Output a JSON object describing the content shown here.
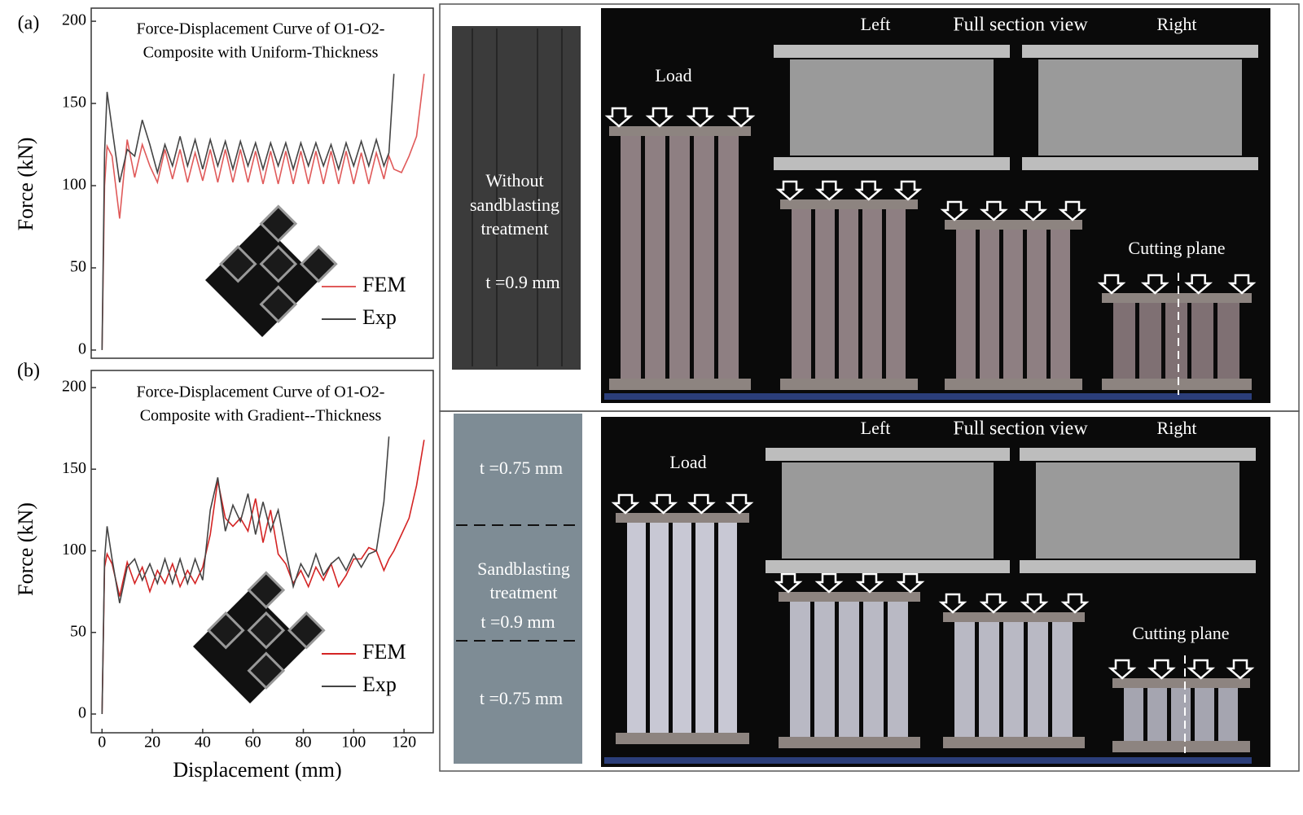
{
  "chart_data": [
    {
      "type": "line",
      "panel_label": "(a)",
      "title": "Force-Displacement Curve of O1-O2-",
      "subtitle": "Composite with Uniform-Thickness",
      "y_label": "Force (kN)",
      "x": [
        0,
        1,
        2,
        4,
        7,
        10,
        13,
        16,
        19,
        22,
        25,
        28,
        31,
        34,
        37,
        40,
        43,
        46,
        49,
        52,
        55,
        58,
        61,
        64,
        67,
        70,
        73,
        76,
        79,
        82,
        85,
        88,
        91,
        94,
        97,
        100,
        103,
        106,
        109,
        112,
        114,
        116,
        119,
        122,
        125,
        128
      ],
      "series": [
        {
          "name": "FEM",
          "color": "#e05a5a",
          "values": [
            0,
            100,
            124,
            118,
            80,
            128,
            105,
            125,
            112,
            102,
            122,
            104,
            122,
            102,
            120,
            103,
            122,
            102,
            122,
            102,
            122,
            102,
            121,
            101,
            121,
            101,
            121,
            101,
            121,
            101,
            121,
            101,
            121,
            101,
            121,
            101,
            120,
            101,
            120,
            104,
            118,
            110,
            108,
            118,
            130,
            168
          ]
        },
        {
          "name": "Exp",
          "color": "#444444",
          "values": [
            0,
            120,
            157,
            135,
            102,
            122,
            118,
            140,
            125,
            108,
            125,
            112,
            130,
            112,
            128,
            110,
            128,
            112,
            127,
            110,
            127,
            112,
            126,
            110,
            126,
            112,
            126,
            110,
            126,
            112,
            126,
            112,
            125,
            110,
            126,
            112,
            127,
            112,
            128,
            112,
            120,
            168,
            null,
            null,
            null,
            null
          ]
        }
      ],
      "xlim": [
        -3,
        130
      ],
      "ylim": [
        -3,
        205
      ],
      "yticks": [
        0,
        50,
        100,
        150,
        200
      ]
    },
    {
      "type": "line",
      "panel_label": "(b)",
      "title": "Force-Displacement Curve of O1-O2-",
      "subtitle": "Composite with Gradient--Thickness",
      "y_label": "Force (kN)",
      "x_label": "Displacement (mm)",
      "x": [
        0,
        1,
        2,
        4,
        7,
        10,
        13,
        16,
        19,
        22,
        25,
        28,
        31,
        34,
        37,
        40,
        43,
        46,
        49,
        52,
        55,
        58,
        61,
        64,
        67,
        70,
        73,
        76,
        79,
        82,
        85,
        88,
        91,
        94,
        97,
        100,
        103,
        106,
        109,
        112,
        114,
        116,
        119,
        122,
        125,
        128
      ],
      "series": [
        {
          "name": "FEM",
          "color": "#d42424",
          "values": [
            0,
            90,
            98,
            92,
            72,
            93,
            80,
            90,
            75,
            88,
            80,
            92,
            78,
            88,
            80,
            90,
            110,
            143,
            120,
            115,
            120,
            112,
            132,
            105,
            125,
            98,
            92,
            80,
            88,
            78,
            90,
            82,
            92,
            78,
            85,
            95,
            95,
            102,
            100,
            88,
            95,
            100,
            110,
            120,
            140,
            168
          ]
        },
        {
          "name": "Exp",
          "color": "#444444",
          "values": [
            0,
            95,
            115,
            95,
            68,
            90,
            95,
            82,
            92,
            80,
            95,
            80,
            95,
            80,
            95,
            82,
            125,
            145,
            112,
            128,
            118,
            135,
            110,
            130,
            112,
            125,
            100,
            78,
            92,
            84,
            98,
            85,
            92,
            96,
            88,
            98,
            90,
            98,
            100,
            130,
            170,
            null,
            null,
            null,
            null,
            null
          ]
        }
      ],
      "xlim": [
        -3,
        130
      ],
      "ylim": [
        -3,
        205
      ],
      "xticks": [
        0,
        20,
        40,
        60,
        80,
        100,
        120
      ],
      "yticks": [
        0,
        50,
        100,
        150,
        200
      ]
    }
  ],
  "photos": {
    "top": {
      "specimen": [
        "Without",
        "sandblasting",
        "treatment"
      ],
      "thickness": "t =0.9 mm",
      "left": "Left",
      "section": "Full section view",
      "right": "Right",
      "load": "Load",
      "cutting": "Cutting plane"
    },
    "bottom": {
      "thickness_top": "t =0.75 mm",
      "specimen": [
        "Sandblasting",
        "treatment"
      ],
      "thickness_mid": "t =0.9 mm",
      "thickness_bottom": "t =0.75 mm",
      "left": "Left",
      "section": "Full section view",
      "right": "Right",
      "load": "Load",
      "cutting": "Cutting plane"
    }
  }
}
